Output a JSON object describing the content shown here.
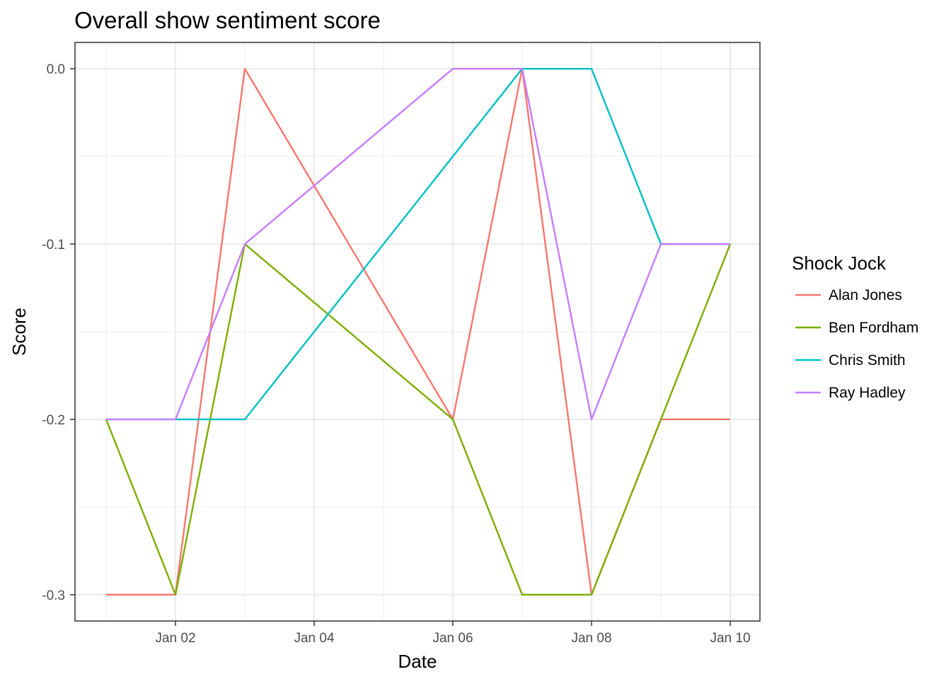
{
  "chart_data": {
    "type": "line",
    "title": "Overall show sentiment score",
    "xlabel": "Date",
    "ylabel": "Score",
    "x": [
      "Jan 01",
      "Jan 02",
      "Jan 03",
      "Jan 04",
      "Jan 05",
      "Jan 06",
      "Jan 07",
      "Jan 08",
      "Jan 09",
      "Jan 10"
    ],
    "x_tick_labels": [
      "Jan 02",
      "Jan 04",
      "Jan 06",
      "Jan 08",
      "Jan 10"
    ],
    "y_tick_labels": [
      "0.0",
      "-0.1",
      "-0.2",
      "-0.3"
    ],
    "y_ticks": [
      0.0,
      -0.1,
      -0.2,
      -0.3
    ],
    "ylim": [
      -0.315,
      0.015
    ],
    "grid": true,
    "legend": {
      "title": "Shock Jock",
      "position": "right"
    },
    "series": [
      {
        "name": "Alan Jones",
        "color": "#F8766D",
        "x": [
          "Jan 01",
          "Jan 02",
          "Jan 03",
          "Jan 06",
          "Jan 07",
          "Jan 08",
          "Jan 09",
          "Jan 10"
        ],
        "values": [
          -0.3,
          -0.3,
          0.0,
          -0.2,
          0.0,
          -0.3,
          -0.2,
          -0.2
        ]
      },
      {
        "name": "Ben Fordham",
        "color": "#7CAE00",
        "x": [
          "Jan 01",
          "Jan 02",
          "Jan 03",
          "Jan 06",
          "Jan 07",
          "Jan 08",
          "Jan 09",
          "Jan 10"
        ],
        "values": [
          -0.2,
          -0.3,
          -0.1,
          -0.2,
          -0.3,
          -0.3,
          -0.2,
          -0.1
        ]
      },
      {
        "name": "Chris Smith",
        "color": "#00BFC4",
        "x": [
          "Jan 01",
          "Jan 02",
          "Jan 03",
          "Jan 07",
          "Jan 08",
          "Jan 09",
          "Jan 10"
        ],
        "values": [
          -0.2,
          -0.2,
          -0.2,
          0.0,
          0.0,
          -0.1,
          -0.1
        ]
      },
      {
        "name": "Ray Hadley",
        "color": "#C77CFF",
        "x": [
          "Jan 01",
          "Jan 02",
          "Jan 03",
          "Jan 06",
          "Jan 07",
          "Jan 08",
          "Jan 09",
          "Jan 10"
        ],
        "values": [
          -0.2,
          -0.2,
          -0.1,
          0.0,
          0.0,
          -0.2,
          -0.1,
          -0.1
        ]
      }
    ]
  }
}
